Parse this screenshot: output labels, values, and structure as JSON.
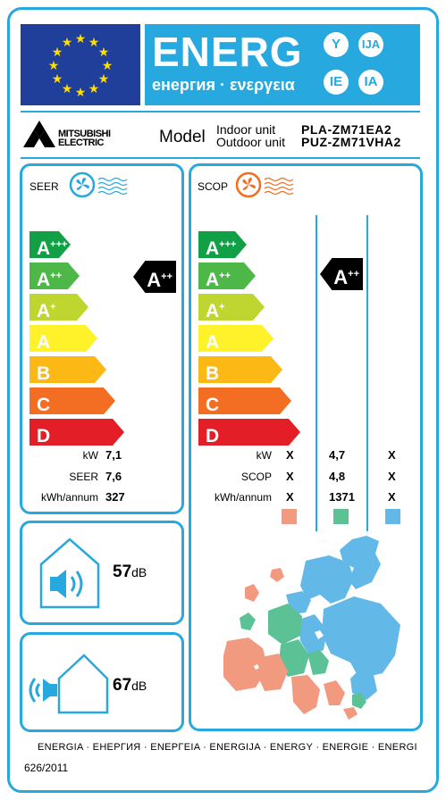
{
  "header": {
    "title": "ENERG",
    "subtitle": "енергия · ενεργεια",
    "circles": [
      "Y",
      "IJA",
      "IE",
      "IA"
    ]
  },
  "brand": {
    "name_line1": "MITSUBISHI",
    "name_line2": "ELECTRIC"
  },
  "model": {
    "label": "Model",
    "indoor_label": "Indoor unit",
    "outdoor_label": "Outdoor unit",
    "indoor_value": "PLA-ZM71EA2",
    "outdoor_value": "PUZ-ZM71VHA2"
  },
  "seer": {
    "label": "SEER",
    "classes": [
      {
        "letter": "A",
        "plus": "+++",
        "color": "#12a047"
      },
      {
        "letter": "A",
        "plus": "++",
        "color": "#4db748"
      },
      {
        "letter": "A",
        "plus": "+",
        "color": "#bed62f"
      },
      {
        "letter": "A",
        "plus": "",
        "color": "#fff12a"
      },
      {
        "letter": "B",
        "plus": "",
        "color": "#fcb814"
      },
      {
        "letter": "C",
        "plus": "",
        "color": "#f36e22"
      },
      {
        "letter": "D",
        "plus": "",
        "color": "#e41e26"
      }
    ],
    "rating": {
      "letter": "A",
      "plus": "++"
    },
    "rows": [
      {
        "label": "kW",
        "value": "7,1"
      },
      {
        "label": "SEER",
        "value": "7,6"
      },
      {
        "label": "kWh/annum",
        "value": "327"
      }
    ]
  },
  "scop": {
    "label": "SCOP",
    "classes": [
      {
        "letter": "A",
        "plus": "+++",
        "color": "#12a047"
      },
      {
        "letter": "A",
        "plus": "++",
        "color": "#4db748"
      },
      {
        "letter": "A",
        "plus": "+",
        "color": "#bed62f"
      },
      {
        "letter": "A",
        "plus": "",
        "color": "#fff12a"
      },
      {
        "letter": "B",
        "plus": "",
        "color": "#fcb814"
      },
      {
        "letter": "C",
        "plus": "",
        "color": "#f36e22"
      },
      {
        "letter": "D",
        "plus": "",
        "color": "#e41e26"
      }
    ],
    "rating": {
      "letter": "A",
      "plus": "++"
    },
    "rows": [
      {
        "label": "kW",
        "values": [
          "X",
          "4,7",
          "X"
        ]
      },
      {
        "label": "SCOP",
        "values": [
          "X",
          "4,8",
          "X"
        ]
      },
      {
        "label": "kWh/annum",
        "values": [
          "X",
          "1371",
          "X"
        ]
      }
    ],
    "zone_colors": [
      "#f29a80",
      "#5cc195",
      "#62b9e8"
    ]
  },
  "noise": {
    "indoor": {
      "value": "57",
      "unit": "dB"
    },
    "outdoor": {
      "value": "67",
      "unit": "dB"
    }
  },
  "footer": {
    "languages": "ENERGIA · ЕНЕРГИЯ · ΕΝΕΡΓΕΙΑ · ENERGIJA · ENERGY · ENERGIE · ENERGI",
    "regulation": "626/2011"
  },
  "colors": {
    "accent": "#27a8df",
    "eu_blue": "#1f3f9a",
    "star": "#ffdd00"
  }
}
